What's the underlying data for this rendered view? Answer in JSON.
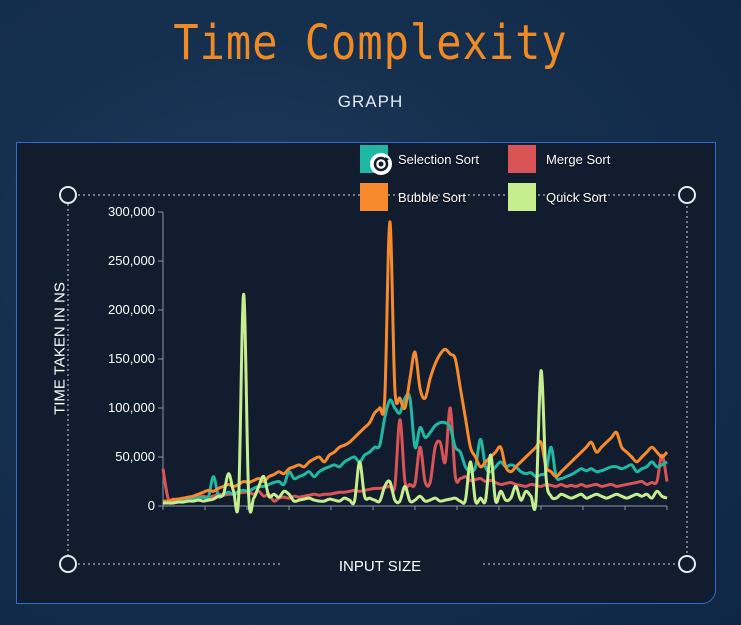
{
  "header": {
    "title": "Time Complexity",
    "subtitle": "GRAPH"
  },
  "colors": {
    "selection": "#1fb8a4",
    "merge": "#d95555",
    "bubble": "#f78a2c",
    "quick": "#c5ee8f",
    "border": "#2a6fd0"
  },
  "chart_data": {
    "type": "line",
    "title": "",
    "xlabel": "INPUT SIZE",
    "ylabel": "TIME TAKEN IN NS",
    "ylim": [
      0,
      300000
    ],
    "yticks": [
      "300,000",
      "250,000",
      "200,000",
      "150,000",
      "100,000",
      "50,000",
      "0"
    ],
    "ytick_values": [
      300000,
      250000,
      200000,
      150000,
      100000,
      50000,
      0
    ],
    "legend_position": "top-right",
    "x": [
      0,
      1,
      2,
      3,
      4,
      5,
      6,
      7,
      8,
      9,
      10,
      11,
      12,
      13,
      14,
      15,
      16,
      17,
      18,
      19,
      20,
      21,
      22,
      23,
      24,
      25,
      26,
      27,
      28,
      29,
      30,
      31,
      32,
      33,
      34,
      35,
      36,
      37,
      38,
      39,
      40,
      41,
      42,
      43,
      44,
      45,
      46,
      47,
      48,
      49,
      50,
      51,
      52,
      53,
      54,
      55,
      56,
      57,
      58,
      59,
      60,
      61,
      62,
      63,
      64,
      65,
      66,
      67,
      68,
      69,
      70,
      71,
      72,
      73,
      74,
      75,
      76,
      77,
      78,
      79,
      80,
      81,
      82,
      83,
      84,
      85,
      86,
      87,
      88,
      89,
      90,
      91,
      92,
      93,
      94,
      95,
      96,
      97,
      98,
      99,
      100
    ],
    "series": [
      {
        "name": "Selection Sort",
        "color_key": "selection",
        "values": [
          3000,
          3000,
          4000,
          5000,
          5000,
          6000,
          7000,
          8000,
          9000,
          9000,
          30000,
          10000,
          12000,
          14000,
          12000,
          15000,
          16000,
          15000,
          18000,
          20000,
          20000,
          22000,
          24000,
          25000,
          22000,
          35000,
          28000,
          30000,
          32000,
          35000,
          30000,
          35000,
          38000,
          40000,
          42000,
          40000,
          45000,
          48000,
          50000,
          45000,
          52000,
          55000,
          60000,
          62000,
          90000,
          108000,
          100000,
          95000,
          110000,
          110000,
          60000,
          80000,
          70000,
          75000,
          82000,
          85000,
          85000,
          80000,
          60000,
          55000,
          40000,
          35000,
          40000,
          68000,
          40000,
          35000,
          40000,
          45000,
          40000,
          42000,
          40000,
          35000,
          33000,
          34000,
          30000,
          32000,
          35000,
          60000,
          30000,
          28000,
          30000,
          32000,
          35000,
          38000,
          36000,
          38000,
          35000,
          36000,
          38000,
          40000,
          40000,
          38000,
          40000,
          42000,
          35000,
          38000,
          40000,
          45000,
          40000,
          42000,
          45000
        ]
      },
      {
        "name": "Bubble Sort",
        "color_key": "bubble",
        "values": [
          5000,
          5000,
          6000,
          7000,
          8000,
          9000,
          10000,
          12000,
          14000,
          16000,
          15000,
          18000,
          20000,
          22000,
          20000,
          22000,
          25000,
          24000,
          26000,
          28000,
          25000,
          30000,
          32000,
          35000,
          33000,
          38000,
          40000,
          42000,
          40000,
          45000,
          48000,
          50000,
          45000,
          52000,
          55000,
          60000,
          62000,
          65000,
          70000,
          75000,
          80000,
          85000,
          95000,
          100000,
          110000,
          290000,
          120000,
          110000,
          100000,
          130000,
          157000,
          120000,
          110000,
          130000,
          145000,
          155000,
          160000,
          155000,
          150000,
          120000,
          90000,
          60000,
          50000,
          40000,
          45000,
          50000,
          55000,
          60000,
          40000,
          35000,
          40000,
          45000,
          50000,
          55000,
          60000,
          65000,
          40000,
          35000,
          30000,
          35000,
          40000,
          45000,
          50000,
          55000,
          60000,
          65000,
          55000,
          60000,
          65000,
          70000,
          75000,
          60000,
          55000,
          50000,
          45000,
          50000,
          55000,
          60000,
          55000,
          50000,
          55000
        ]
      },
      {
        "name": "Merge Sort",
        "color_key": "merge",
        "values": [
          38000,
          8000,
          7000,
          7000,
          8000,
          8000,
          9000,
          10000,
          10000,
          9000,
          10000,
          12000,
          11000,
          12000,
          12000,
          13000,
          14000,
          14000,
          12000,
          15000,
          10000,
          12000,
          5000,
          8000,
          9000,
          8000,
          10000,
          9000,
          10000,
          11000,
          12000,
          11000,
          12000,
          12000,
          13000,
          14000,
          14000,
          15000,
          16000,
          15000,
          16000,
          17000,
          18000,
          18000,
          19000,
          20000,
          20000,
          88000,
          25000,
          22000,
          23000,
          60000,
          25000,
          24000,
          60000,
          65000,
          45000,
          100000,
          30000,
          28000,
          30000,
          26000,
          27000,
          28000,
          25000,
          26000,
          24000,
          22000,
          23000,
          24000,
          22000,
          21000,
          20000,
          22000,
          21000,
          20000,
          22000,
          21000,
          20000,
          22000,
          20000,
          21000,
          20000,
          22000,
          20000,
          21000,
          22000,
          20000,
          21000,
          22000,
          20000,
          21000,
          22000,
          23000,
          24000,
          25000,
          22000,
          24000,
          25000,
          52000,
          25000
        ]
      },
      {
        "name": "Quick Sort",
        "color_key": "quick",
        "values": [
          3000,
          3000,
          3000,
          4000,
          4000,
          5000,
          5000,
          6000,
          5000,
          6000,
          7000,
          10000,
          12000,
          33000,
          15000,
          8000,
          216000,
          10000,
          8000,
          20000,
          30000,
          10000,
          12000,
          9000,
          15000,
          12000,
          5000,
          6000,
          7000,
          8000,
          6000,
          5000,
          5000,
          7000,
          6000,
          5000,
          8000,
          6000,
          5000,
          45000,
          10000,
          8000,
          6000,
          5000,
          20000,
          25000,
          6000,
          5000,
          20000,
          5000,
          6000,
          10000,
          5000,
          6000,
          8000,
          5000,
          6000,
          7000,
          8000,
          5000,
          6000,
          45000,
          5000,
          8000,
          6000,
          52000,
          5000,
          15000,
          6000,
          8000,
          20000,
          6000,
          15000,
          10000,
          5000,
          138000,
          30000,
          10000,
          8000,
          12000,
          10000,
          8000,
          10000,
          12000,
          8000,
          10000,
          12000,
          10000,
          8000,
          10000,
          12000,
          10000,
          8000,
          10000,
          12000,
          10000,
          12000,
          8000,
          15000,
          10000,
          8000
        ]
      }
    ]
  }
}
